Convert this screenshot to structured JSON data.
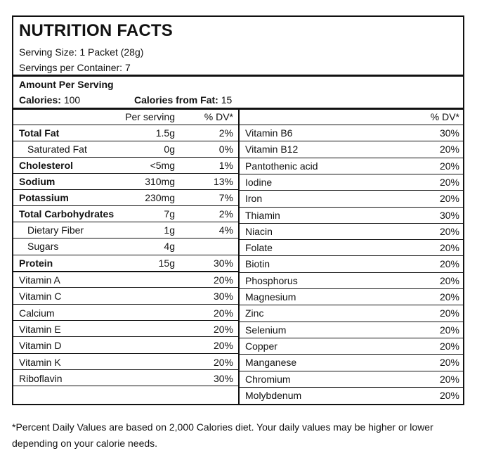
{
  "title": "NUTRITION FACTS",
  "serving_size": "Serving Size: 1 Packet (28g)",
  "servings_per_container": "Servings per Container: 7",
  "amount_per_serving": "Amount Per Serving",
  "calories_label": "Calories:",
  "calories_value": "100",
  "calories_fat_label": "Calories from Fat:",
  "calories_fat_value": "15",
  "left_header": {
    "per_serving": "Per serving",
    "dv": "% DV*"
  },
  "right_header": {
    "dv": "% DV*"
  },
  "left_rows": [
    {
      "name": "Total Fat",
      "amount": "1.5g",
      "dv": "2%"
    },
    {
      "name": "Saturated Fat",
      "amount": "0g",
      "dv": "0%"
    },
    {
      "name": "Cholesterol",
      "amount": "<5mg",
      "dv": "1%"
    },
    {
      "name": "Sodium",
      "amount": "310mg",
      "dv": "13%"
    },
    {
      "name": "Potassium",
      "amount": "230mg",
      "dv": "7%"
    },
    {
      "name": "Total Carbohydrates",
      "amount": "7g",
      "dv": "2%"
    },
    {
      "name": "Dietary Fiber",
      "amount": "1g",
      "dv": "4%"
    },
    {
      "name": "Sugars",
      "amount": "4g",
      "dv": ""
    },
    {
      "name": "Protein",
      "amount": "15g",
      "dv": "30%"
    }
  ],
  "left_vitamins": [
    {
      "name": "Vitamin A",
      "dv": "20%"
    },
    {
      "name": "Vitamin C",
      "dv": "30%"
    },
    {
      "name": "Calcium",
      "dv": "20%"
    },
    {
      "name": "Vitamin E",
      "dv": "20%"
    },
    {
      "name": "Vitamin D",
      "dv": "20%"
    },
    {
      "name": "Vitamin K",
      "dv": "20%"
    },
    {
      "name": "Riboflavin",
      "dv": "30%"
    }
  ],
  "right_rows": [
    {
      "name": "Vitamin B6",
      "dv": "30%"
    },
    {
      "name": "Vitamin B12",
      "dv": "20%"
    },
    {
      "name": "Pantothenic acid",
      "dv": "20%"
    },
    {
      "name": "Iodine",
      "dv": "20%"
    },
    {
      "name": "Iron",
      "dv": "20%"
    },
    {
      "name": "Thiamin",
      "dv": "30%"
    },
    {
      "name": "Niacin",
      "dv": "20%"
    },
    {
      "name": "Folate",
      "dv": "20%"
    },
    {
      "name": "Biotin",
      "dv": "20%"
    },
    {
      "name": "Phosphorus",
      "dv": "20%"
    },
    {
      "name": "Magnesium",
      "dv": "20%"
    },
    {
      "name": "Zinc",
      "dv": "20%"
    },
    {
      "name": "Selenium",
      "dv": "20%"
    },
    {
      "name": "Copper",
      "dv": "20%"
    },
    {
      "name": "Manganese",
      "dv": "20%"
    },
    {
      "name": "Chromium",
      "dv": "20%"
    },
    {
      "name": "Molybdenum",
      "dv": "20%"
    }
  ],
  "footnote": "*Percent Daily Values are based on 2,000 Calories diet. Your daily values may be higher or lower depending on your calorie needs."
}
